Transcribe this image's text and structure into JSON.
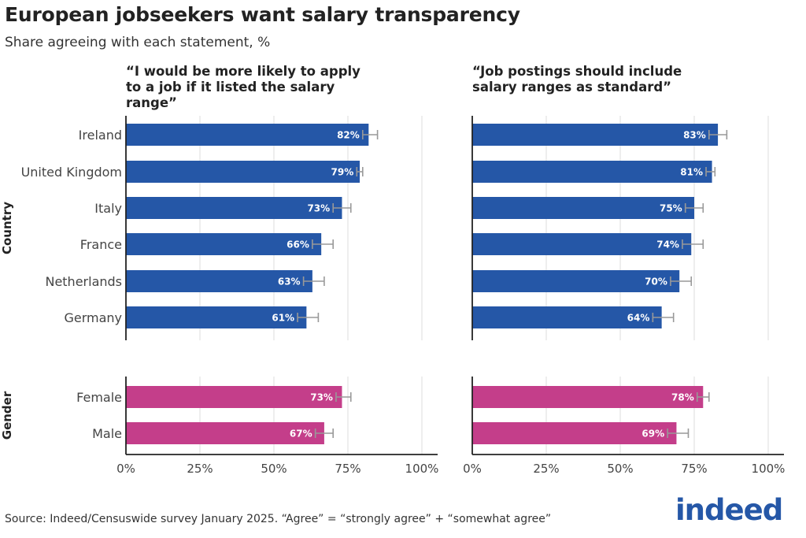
{
  "title": "European jobseekers want salary transparency",
  "subtitle": "Share agreeing with each statement, %",
  "source": "Source: Indeed/Censuswide survey January 2025. “Agree” = “strongly agree” + “somewhat agree”",
  "logo": "indeed",
  "colors": {
    "country": "#2557a7",
    "gender": "#c43e8a",
    "errorbar": "#999999",
    "grid": "#dddddd",
    "axis": "#222222"
  },
  "chart_data": {
    "type": "bar",
    "orientation": "horizontal",
    "xlim": [
      0,
      100
    ],
    "x_ticks": [
      "0%",
      "25%",
      "50%",
      "75%",
      "100%"
    ],
    "groups": [
      {
        "name": "Country",
        "categories": [
          "Ireland",
          "United Kingdom",
          "Italy",
          "France",
          "Netherlands",
          "Germany"
        ]
      },
      {
        "name": "Gender",
        "categories": [
          "Female",
          "Male"
        ]
      }
    ],
    "panels": [
      {
        "title_lines": [
          "“I would be more likely to apply",
          "to a job if it listed the salary",
          "range”"
        ],
        "values": [
          82,
          79,
          73,
          66,
          63,
          61,
          73,
          67
        ],
        "labels": [
          "82%",
          "79%",
          "73%",
          "66%",
          "63%",
          "61%",
          "73%",
          "67%"
        ],
        "error_low": [
          80,
          78,
          70,
          63,
          60,
          58,
          71,
          64
        ],
        "error_high": [
          85,
          80,
          76,
          70,
          67,
          65,
          76,
          70
        ]
      },
      {
        "title_lines": [
          "“Job postings should include",
          "salary ranges as standard”"
        ],
        "values": [
          83,
          81,
          75,
          74,
          70,
          64,
          78,
          69
        ],
        "labels": [
          "83%",
          "81%",
          "75%",
          "74%",
          "70%",
          "64%",
          "78%",
          "69%"
        ],
        "error_low": [
          80,
          79,
          72,
          71,
          67,
          61,
          76,
          66
        ],
        "error_high": [
          86,
          82,
          78,
          78,
          74,
          68,
          80,
          73
        ]
      }
    ]
  }
}
